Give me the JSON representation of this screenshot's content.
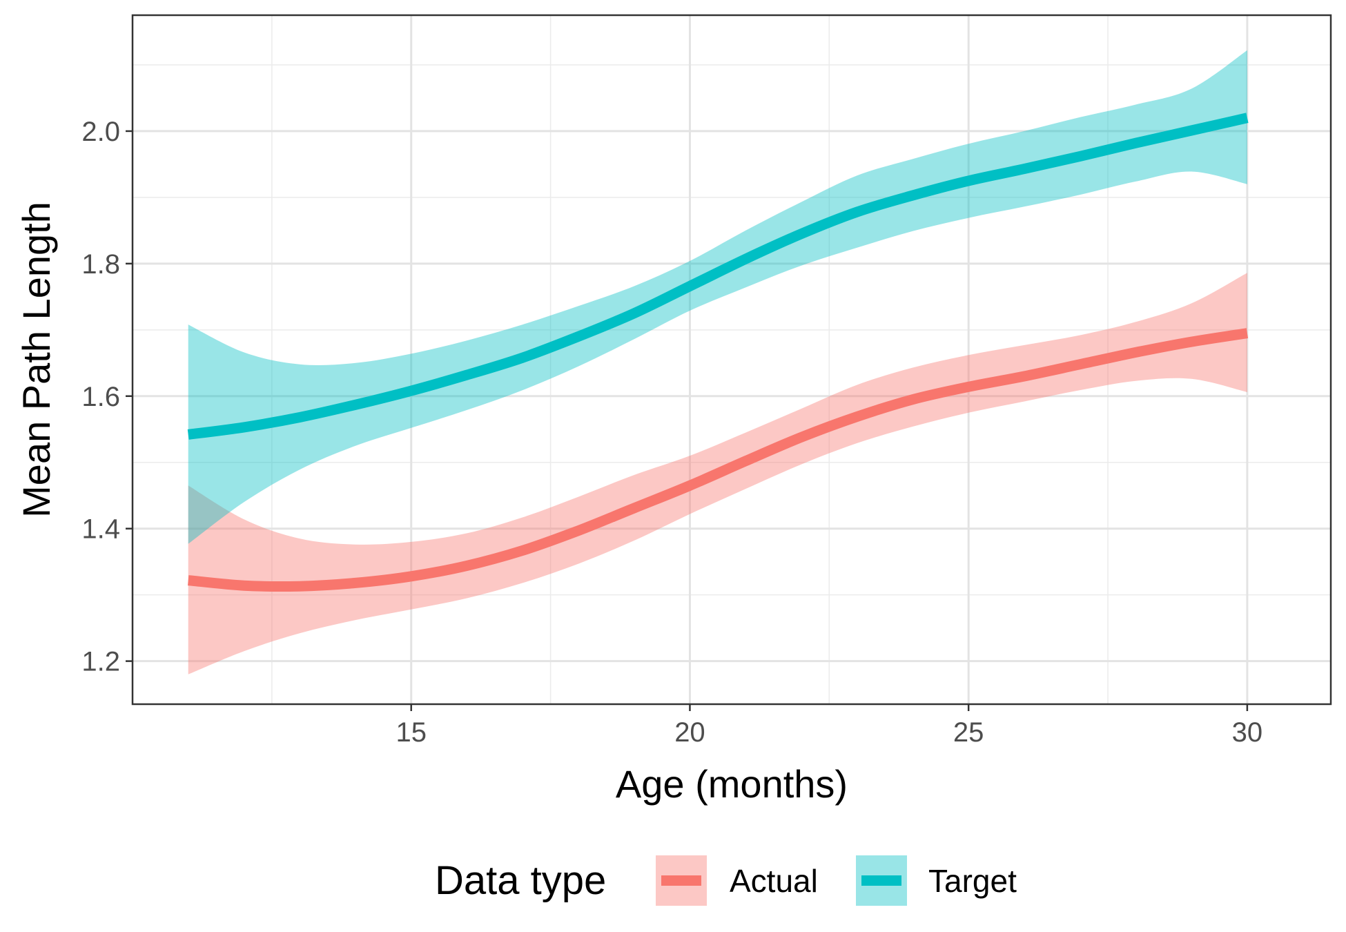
{
  "chart_data": {
    "type": "line",
    "xlabel": "Age (months)",
    "ylabel": "Mean Path Length",
    "xlim": [
      10.0,
      31.5
    ],
    "ylim": [
      1.135,
      2.175
    ],
    "x_ticks": [
      15,
      20,
      25,
      30
    ],
    "x_tick_labels": [
      "15",
      "20",
      "25",
      "30"
    ],
    "x_minor_ticks": [
      12.5,
      17.5,
      22.5,
      27.5
    ],
    "y_ticks": [
      1.2,
      1.4,
      1.6,
      1.8,
      2.0
    ],
    "y_tick_labels": [
      "1.2",
      "1.4",
      "1.6",
      "1.8",
      "2.0"
    ],
    "y_minor_ticks": [
      1.3,
      1.5,
      1.7,
      1.9,
      2.1
    ],
    "grid": true,
    "legend": {
      "title": "Data type",
      "placement": "bottom"
    },
    "series": [
      {
        "name": "Actual",
        "color": "#F8766D",
        "x": [
          11,
          12,
          13,
          14,
          15,
          16,
          17,
          18,
          19,
          20,
          21,
          22,
          23,
          24,
          25,
          26,
          27,
          28,
          29,
          30
        ],
        "values": [
          1.322,
          1.314,
          1.313,
          1.318,
          1.328,
          1.344,
          1.367,
          1.397,
          1.431,
          1.465,
          1.502,
          1.538,
          1.569,
          1.595,
          1.614,
          1.63,
          1.648,
          1.666,
          1.682,
          1.695
        ],
        "ci_lower": [
          1.18,
          1.215,
          1.242,
          1.262,
          1.278,
          1.295,
          1.318,
          1.347,
          1.382,
          1.422,
          1.46,
          1.497,
          1.529,
          1.554,
          1.575,
          1.592,
          1.609,
          1.623,
          1.626,
          1.606
        ],
        "ci_upper": [
          1.465,
          1.414,
          1.385,
          1.376,
          1.38,
          1.393,
          1.417,
          1.448,
          1.481,
          1.51,
          1.545,
          1.581,
          1.617,
          1.643,
          1.662,
          1.677,
          1.692,
          1.712,
          1.74,
          1.786
        ]
      },
      {
        "name": "Target",
        "color": "#00BFC4",
        "x": [
          11,
          12,
          13,
          14,
          15,
          16,
          17,
          18,
          19,
          20,
          21,
          22,
          23,
          24,
          25,
          26,
          27,
          28,
          29,
          30
        ],
        "values": [
          1.542,
          1.553,
          1.568,
          1.587,
          1.608,
          1.632,
          1.658,
          1.69,
          1.725,
          1.766,
          1.807,
          1.845,
          1.878,
          1.903,
          1.925,
          1.943,
          1.962,
          1.982,
          2.001,
          2.02
        ],
        "ci_lower": [
          1.377,
          1.44,
          1.489,
          1.525,
          1.552,
          1.579,
          1.609,
          1.645,
          1.686,
          1.729,
          1.764,
          1.797,
          1.824,
          1.849,
          1.869,
          1.886,
          1.904,
          1.924,
          1.939,
          1.92
        ],
        "ci_upper": [
          1.708,
          1.666,
          1.648,
          1.65,
          1.664,
          1.684,
          1.708,
          1.736,
          1.766,
          1.804,
          1.85,
          1.893,
          1.933,
          1.958,
          1.981,
          2.0,
          2.021,
          2.04,
          2.064,
          2.122
        ]
      }
    ]
  }
}
